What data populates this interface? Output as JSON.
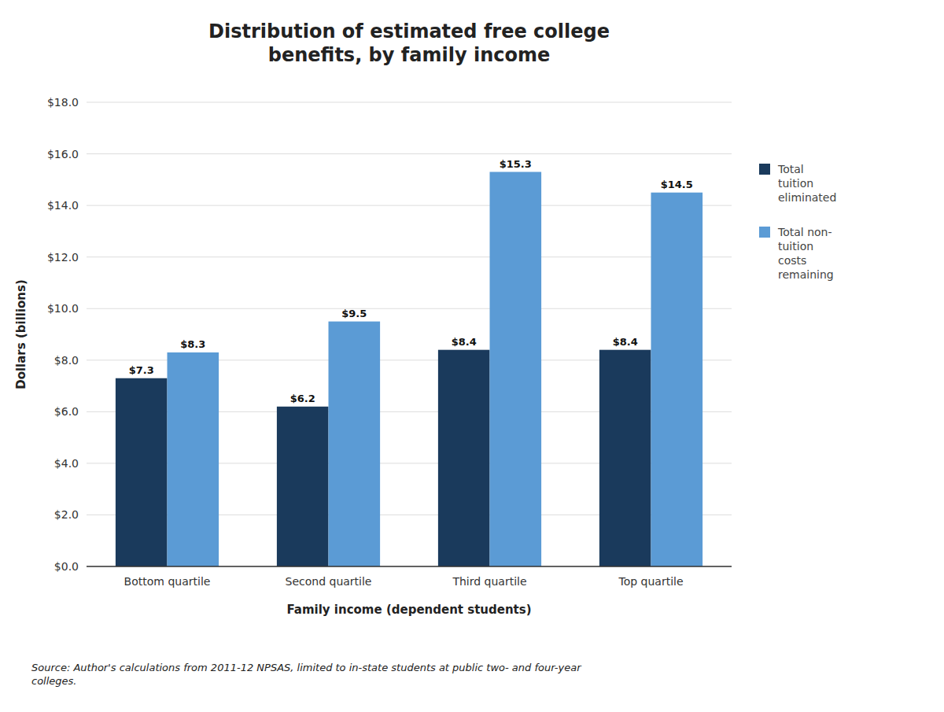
{
  "chart_data": {
    "type": "bar",
    "title": "Distribution of estimated free college\nbenefits, by family income",
    "categories": [
      "Bottom quartile",
      "Second quartile",
      "Third quartile",
      "Top quartile"
    ],
    "series": [
      {
        "name": "Total\ntuition\neliminated",
        "color": "#1a3a5c",
        "values": [
          7.3,
          6.2,
          8.4,
          8.4
        ],
        "value_labels": [
          "$7.3",
          "$6.2",
          "$8.4",
          "$8.4"
        ]
      },
      {
        "name": "Total non-\ntuition\ncosts\nremaining",
        "color": "#5b9bd5",
        "values": [
          8.3,
          9.5,
          15.3,
          14.5
        ],
        "value_labels": [
          "$8.3",
          "$9.5",
          "$15.3",
          "$14.5"
        ]
      }
    ],
    "xlabel": "Family income (dependent students)",
    "ylabel": "Dollars (billions)",
    "ylim": [
      0,
      18.0
    ],
    "yticks": [
      {
        "value": 0.0,
        "label": "$0.0"
      },
      {
        "value": 2.0,
        "label": "$2.0"
      },
      {
        "value": 4.0,
        "label": "$4.0"
      },
      {
        "value": 6.0,
        "label": "$6.0"
      },
      {
        "value": 8.0,
        "label": "$8.0"
      },
      {
        "value": 10.0,
        "label": "$10.0"
      },
      {
        "value": 12.0,
        "label": "$12.0"
      },
      {
        "value": 14.0,
        "label": "$14.0"
      },
      {
        "value": 16.0,
        "label": "$16.0"
      },
      {
        "value": 18.0,
        "label": "$18.0"
      }
    ],
    "annotations": [
      "Source: Author's calculations from 2011-12 NPSAS, limited to in-state students at public two- and four-year\ncolleges."
    ],
    "grid": true,
    "legend": "right",
    "data_labels": true
  }
}
